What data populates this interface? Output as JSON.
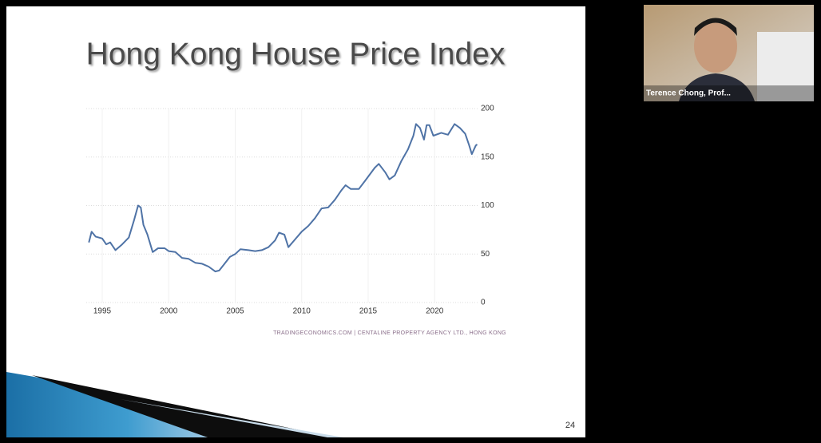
{
  "chart_data": {
    "type": "line",
    "title": "Hong Kong House Price Index",
    "source": "TRADINGECONOMICS.COM | CENTALINE PROPERTY AGENCY LTD., HONG KONG",
    "x": [
      1994.0,
      1994.2,
      1994.5,
      1995.0,
      1995.3,
      1995.6,
      1996.0,
      1996.5,
      1997.0,
      1997.4,
      1997.7,
      1997.9,
      1998.1,
      1998.4,
      1998.8,
      1999.2,
      1999.7,
      2000.0,
      2000.5,
      2001.0,
      2001.5,
      2002.0,
      2002.5,
      2003.0,
      2003.5,
      2003.8,
      2004.2,
      2004.6,
      2005.0,
      2005.4,
      2006.0,
      2006.5,
      2007.0,
      2007.5,
      2008.0,
      2008.3,
      2008.7,
      2009.0,
      2009.5,
      2010.0,
      2010.5,
      2011.0,
      2011.5,
      2012.0,
      2012.5,
      2013.0,
      2013.3,
      2013.7,
      2014.3,
      2014.8,
      2015.5,
      2015.8,
      2016.3,
      2016.6,
      2017.0,
      2017.5,
      2018.0,
      2018.4,
      2018.6,
      2018.9,
      2019.2,
      2019.4,
      2019.6,
      2019.9,
      2020.5,
      2021.0,
      2021.5,
      2021.9,
      2022.3,
      2022.6,
      2022.8,
      2023.1,
      2023.2
    ],
    "values": [
      62,
      73,
      68,
      66,
      60,
      62,
      54,
      60,
      67,
      85,
      100,
      98,
      80,
      70,
      52,
      56,
      56,
      53,
      52,
      46,
      45,
      41,
      40,
      37,
      32,
      33,
      40,
      47,
      50,
      55,
      54,
      53,
      54,
      57,
      64,
      72,
      70,
      57,
      65,
      73,
      79,
      87,
      97,
      98,
      106,
      116,
      121,
      117,
      117,
      126,
      139,
      143,
      134,
      127,
      131,
      146,
      158,
      172,
      184,
      180,
      168,
      183,
      183,
      172,
      175,
      173,
      184,
      180,
      174,
      162,
      153,
      162,
      163
    ],
    "color": "#4f73a6",
    "xlim": [
      1993.8,
      2023.35
    ],
    "xticks": [
      1995,
      2000,
      2005,
      2010,
      2015,
      2020
    ],
    "ylim": [
      0,
      200
    ],
    "yticks": [
      0,
      50,
      100,
      150,
      200
    ],
    "grid": true
  },
  "slide": {
    "number": 24
  },
  "participant": {
    "name": "Terence Chong, Prof..."
  }
}
